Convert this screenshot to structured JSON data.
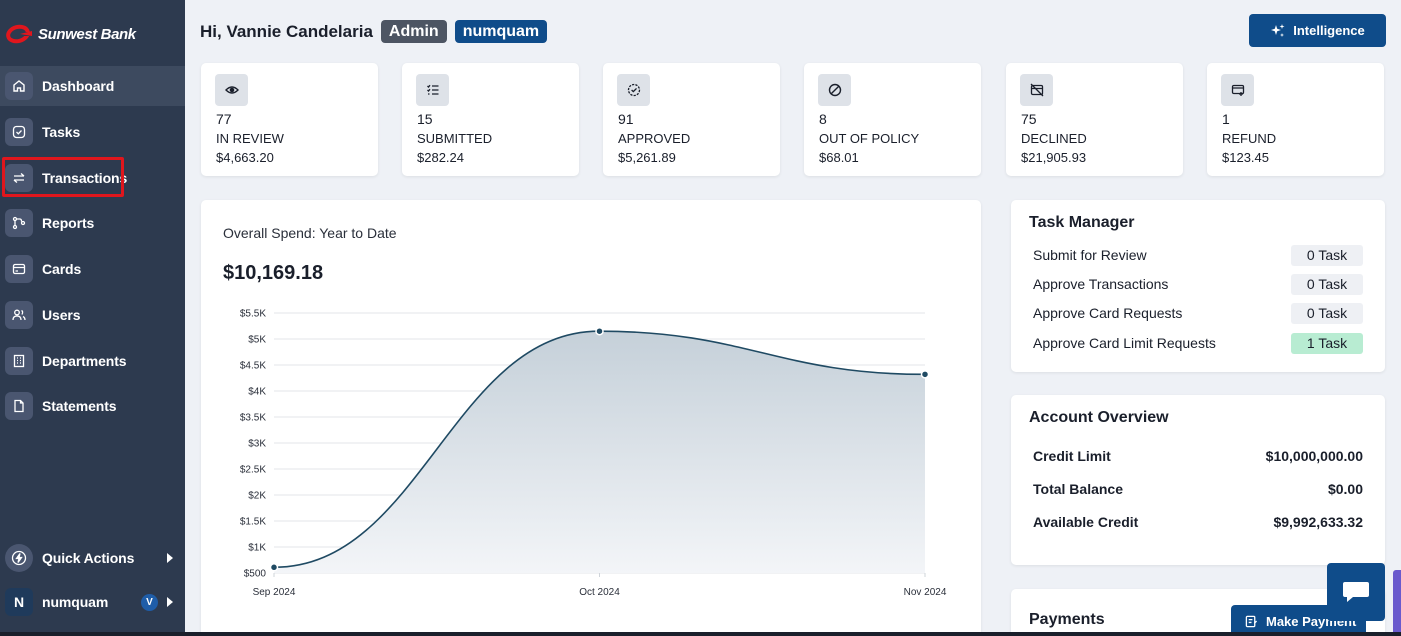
{
  "brand": {
    "name": "Sunwest Bank",
    "accent": "#e0161d",
    "primary": "#0f4c8a",
    "sidebar_bg": "#2d3a4f"
  },
  "sidebar": {
    "items": [
      {
        "label": "Dashboard",
        "icon": "home-icon"
      },
      {
        "label": "Tasks",
        "icon": "check-circle-icon"
      },
      {
        "label": "Transactions",
        "icon": "arrows-swap-icon"
      },
      {
        "label": "Reports",
        "icon": "branch-icon"
      },
      {
        "label": "Cards",
        "icon": "card-icon"
      },
      {
        "label": "Users",
        "icon": "users-icon"
      },
      {
        "label": "Departments",
        "icon": "building-icon"
      },
      {
        "label": "Statements",
        "icon": "document-icon"
      }
    ],
    "quick_actions": "Quick Actions",
    "account": {
      "initial": "N",
      "name": "numquam",
      "badge": "V"
    }
  },
  "header": {
    "greeting": "Hi, Vannie Candelaria",
    "role_badge": "Admin",
    "org_badge": "numquam",
    "intelligence_label": "Intelligence"
  },
  "stats": [
    {
      "count": "77",
      "label": "IN REVIEW",
      "amount": "$4,663.20",
      "icon": "eye-icon"
    },
    {
      "count": "15",
      "label": "SUBMITTED",
      "amount": "$282.24",
      "icon": "list-check-icon"
    },
    {
      "count": "91",
      "label": "APPROVED",
      "amount": "$5,261.89",
      "icon": "badge-check-icon"
    },
    {
      "count": "8",
      "label": "OUT OF POLICY",
      "amount": "$68.01",
      "icon": "ban-icon"
    },
    {
      "count": "75",
      "label": "DECLINED",
      "amount": "$21,905.93",
      "icon": "declined-card-icon"
    },
    {
      "count": "1",
      "label": "REFUND",
      "amount": "$123.45",
      "icon": "refund-icon"
    }
  ],
  "spend": {
    "title": "Overall Spend: Year to Date",
    "total": "$10,169.18"
  },
  "chart_data": {
    "type": "area",
    "x": [
      "Sep 2024",
      "Oct 2024",
      "Nov 2024"
    ],
    "series": [
      {
        "values": [
          610,
          5150,
          4320
        ]
      }
    ],
    "ylim": [
      500,
      5500
    ],
    "yticks": [
      "$500",
      "$1K",
      "$1.5K",
      "$2K",
      "$2.5K",
      "$3K",
      "$3.5K",
      "$4K",
      "$4.5K",
      "$5K",
      "$5.5K"
    ],
    "grid": true,
    "line_color": "#1f4a63"
  },
  "task_manager": {
    "title": "Task Manager",
    "rows": [
      {
        "label": "Submit for Review",
        "value": "0 Task"
      },
      {
        "label": "Approve Transactions",
        "value": "0 Task"
      },
      {
        "label": "Approve Card Requests",
        "value": "0 Task"
      },
      {
        "label": "Approve Card Limit Requests",
        "value": "1 Task"
      }
    ]
  },
  "account_overview": {
    "title": "Account Overview",
    "rows": [
      {
        "label": "Credit Limit",
        "value": "$10,000,000.00"
      },
      {
        "label": "Total Balance",
        "value": "$0.00"
      },
      {
        "label": "Available Credit",
        "value": "$9,992,633.32"
      }
    ]
  },
  "payments": {
    "title": "Payments",
    "button_label": "Make Payment"
  }
}
